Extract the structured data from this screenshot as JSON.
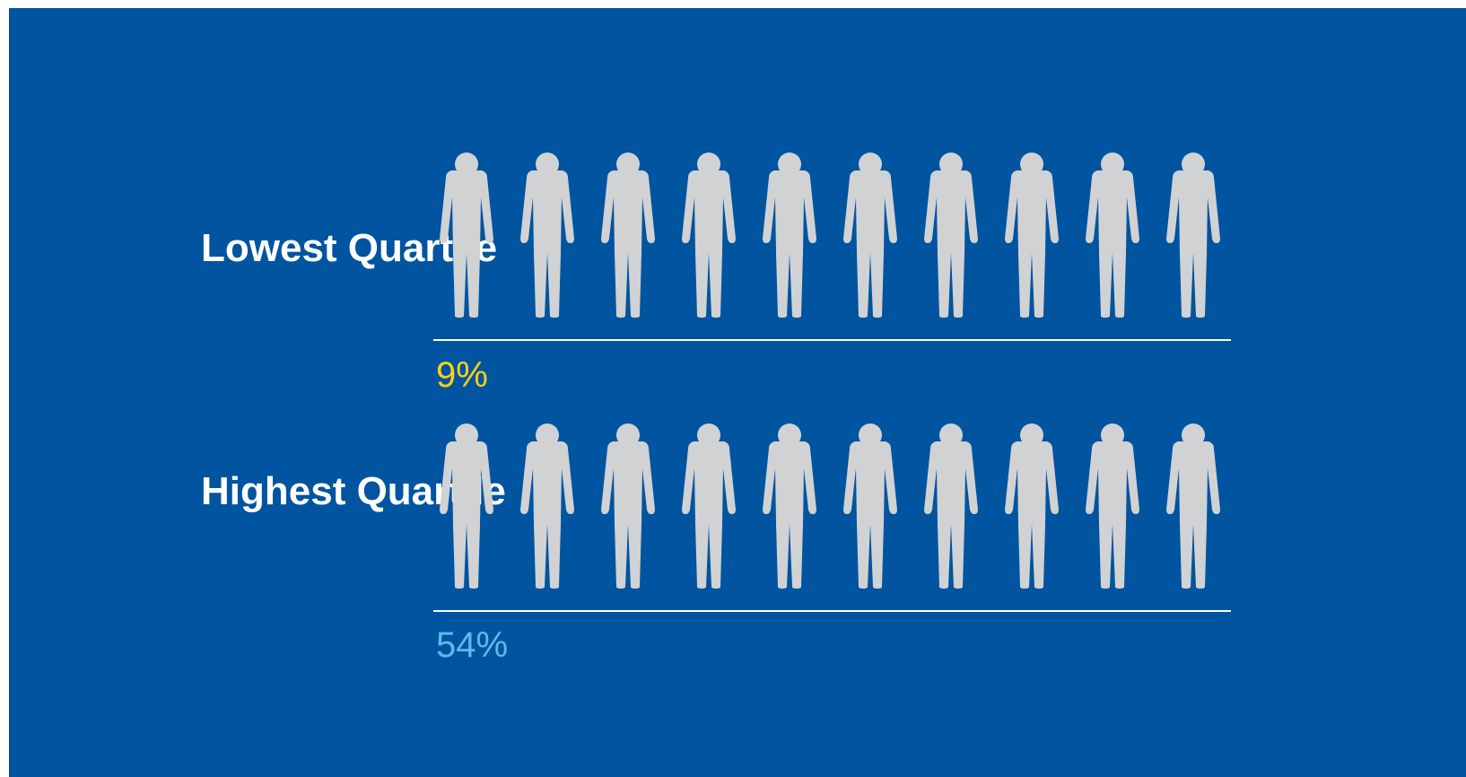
{
  "chart_data": {
    "type": "pictogram",
    "icon": "person-icon",
    "icons_per_row": 10,
    "unit": "%",
    "colors": {
      "background": "#01549f",
      "empty": "#d1d2d4",
      "text": "#ffffff",
      "rule": "#ffffff"
    },
    "series": [
      {
        "name": "Lowest Quartile",
        "value": 9,
        "label": "9%",
        "color": "#fcd116"
      },
      {
        "name": "Highest Quartile",
        "value": 54,
        "label": "54%",
        "color": "#5bbbea"
      }
    ]
  }
}
